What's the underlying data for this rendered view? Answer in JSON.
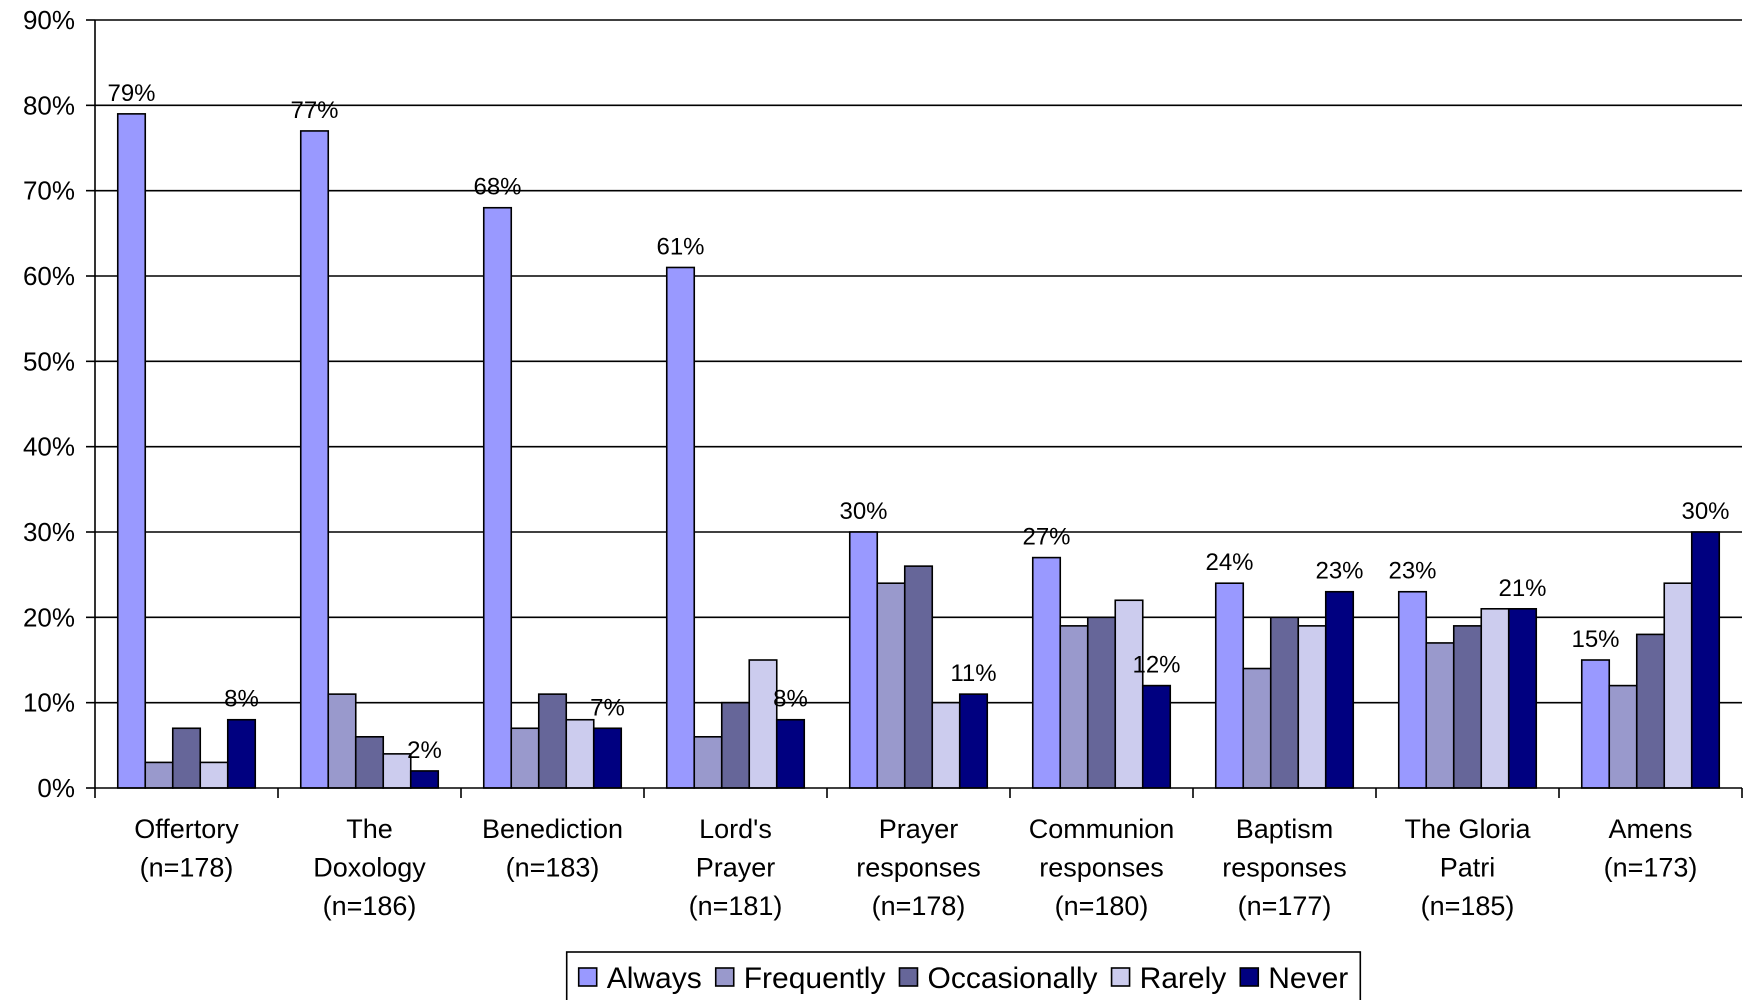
{
  "chart_data": {
    "type": "bar",
    "title": "",
    "xlabel": "",
    "ylabel": "",
    "ylim": [
      0,
      90
    ],
    "y_ticks": [
      "0%",
      "10%",
      "20%",
      "30%",
      "40%",
      "50%",
      "60%",
      "70%",
      "80%",
      "90%"
    ],
    "grid": true,
    "legend_position": "bottom",
    "categories": [
      [
        "Offertory",
        "(n=178)"
      ],
      [
        "The",
        "Doxology",
        "(n=186)"
      ],
      [
        "Benediction",
        "(n=183)"
      ],
      [
        "Lord's",
        "Prayer",
        "(n=181)"
      ],
      [
        "Prayer",
        "responses",
        "(n=178)"
      ],
      [
        "Communion",
        "responses",
        "(n=180)"
      ],
      [
        "Baptism",
        "responses",
        "(n=177)"
      ],
      [
        "The Gloria",
        "Patri",
        "(n=185)"
      ],
      [
        "Amens",
        "(n=173)"
      ]
    ],
    "series": [
      {
        "name": "Always",
        "color": "#9999ff",
        "values": [
          79,
          77,
          68,
          61,
          30,
          27,
          24,
          23,
          15
        ]
      },
      {
        "name": "Frequently",
        "color": "#9999cc",
        "values": [
          3,
          11,
          7,
          6,
          24,
          19,
          14,
          17,
          12
        ]
      },
      {
        "name": "Occasionally",
        "color": "#666699",
        "values": [
          7,
          6,
          11,
          10,
          26,
          20,
          20,
          19,
          18
        ]
      },
      {
        "name": "Rarely",
        "color": "#ccccee",
        "values": [
          3,
          4,
          8,
          15,
          10,
          22,
          19,
          21,
          24
        ]
      },
      {
        "name": "Never",
        "color": "#000080",
        "values": [
          8,
          2,
          7,
          8,
          11,
          12,
          23,
          21,
          30
        ]
      }
    ],
    "data_labels": [
      {
        "category": 0,
        "series": 0,
        "text": "79%"
      },
      {
        "category": 0,
        "series": 4,
        "text": "8%"
      },
      {
        "category": 1,
        "series": 0,
        "text": "77%"
      },
      {
        "category": 1,
        "series": 4,
        "text": "2%"
      },
      {
        "category": 2,
        "series": 0,
        "text": "68%"
      },
      {
        "category": 2,
        "series": 4,
        "text": "7%"
      },
      {
        "category": 3,
        "series": 0,
        "text": "61%"
      },
      {
        "category": 3,
        "series": 4,
        "text": "8%"
      },
      {
        "category": 4,
        "series": 0,
        "text": "30%"
      },
      {
        "category": 4,
        "series": 4,
        "text": "11%"
      },
      {
        "category": 5,
        "series": 0,
        "text": "27%"
      },
      {
        "category": 5,
        "series": 4,
        "text": "12%"
      },
      {
        "category": 6,
        "series": 0,
        "text": "24%"
      },
      {
        "category": 6,
        "series": 4,
        "text": "23%"
      },
      {
        "category": 7,
        "series": 0,
        "text": "23%"
      },
      {
        "category": 7,
        "series": 4,
        "text": "21%"
      },
      {
        "category": 8,
        "series": 0,
        "text": "15%"
      },
      {
        "category": 8,
        "series": 4,
        "text": "30%"
      }
    ]
  }
}
